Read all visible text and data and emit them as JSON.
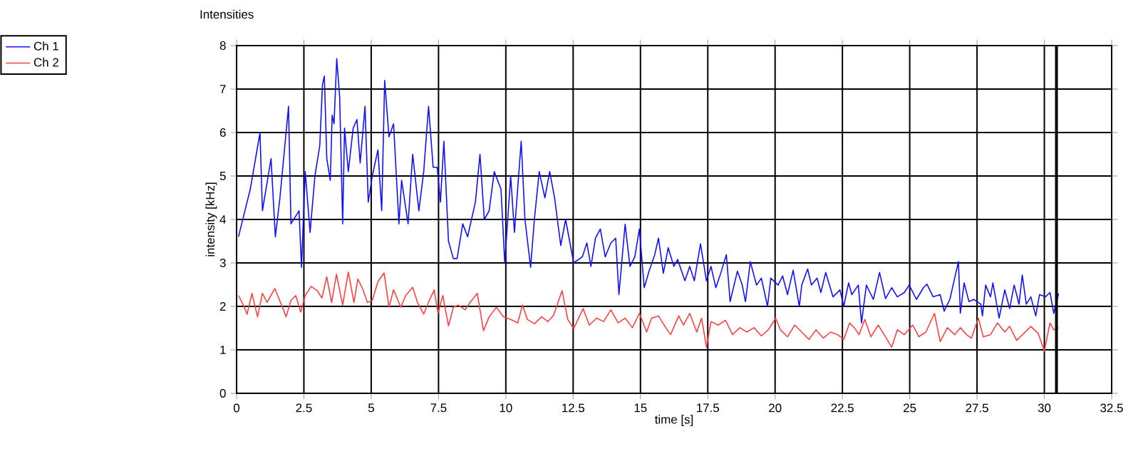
{
  "chart_data": {
    "type": "line",
    "title": "Intensities",
    "xlabel": "time [s]",
    "ylabel": "intensity [kHz]",
    "xlim": [
      0,
      32.5
    ],
    "ylim": [
      0,
      8
    ],
    "xticks": [
      0,
      2.5,
      5,
      7.5,
      10,
      12.5,
      15,
      17.5,
      20,
      22.5,
      25,
      27.5,
      30,
      32.5
    ],
    "yticks": [
      0,
      1,
      2,
      3,
      4,
      5,
      6,
      7,
      8
    ],
    "grid": true,
    "legend": "top left",
    "ref_lines": [
      {
        "axis": "x",
        "value": 30.45,
        "color": "#000000"
      }
    ],
    "series": [
      {
        "name": "Ch 1",
        "color": "#1010ff",
        "x": [
          0.07,
          0.51,
          0.87,
          0.96,
          1.28,
          1.44,
          1.61,
          1.93,
          2.02,
          2.32,
          2.41,
          2.55,
          2.73,
          2.91,
          3.09,
          3.19,
          3.26,
          3.35,
          3.48,
          3.55,
          3.62,
          3.72,
          3.83,
          3.94,
          4.01,
          4.15,
          4.33,
          4.47,
          4.59,
          4.77,
          4.89,
          5.04,
          5.25,
          5.39,
          5.5,
          5.66,
          5.83,
          6.03,
          6.13,
          6.37,
          6.54,
          6.77,
          6.95,
          7.13,
          7.3,
          7.45,
          7.57,
          7.7,
          7.87,
          8.05,
          8.19,
          8.4,
          8.58,
          8.87,
          9.04,
          9.2,
          9.38,
          9.57,
          9.82,
          9.96,
          10.18,
          10.32,
          10.57,
          10.71,
          10.92,
          11.06,
          11.24,
          11.45,
          11.63,
          11.81,
          12.04,
          12.22,
          12.52,
          12.84,
          13.01,
          13.16,
          13.33,
          13.51,
          13.69,
          13.9,
          14.08,
          14.2,
          14.43,
          14.61,
          14.79,
          14.96,
          15.14,
          15.32,
          15.53,
          15.67,
          15.85,
          16.03,
          16.24,
          16.38,
          16.65,
          16.83,
          17.0,
          17.23,
          17.45,
          17.62,
          17.8,
          17.98,
          18.19,
          18.33,
          18.6,
          18.78,
          18.9,
          19.08,
          19.31,
          19.49,
          19.72,
          19.84,
          20.11,
          20.28,
          20.46,
          20.67,
          20.9,
          20.99,
          21.21,
          21.35,
          21.56,
          21.7,
          21.88,
          22.15,
          22.41,
          22.55,
          22.73,
          22.85,
          23.09,
          23.21,
          23.39,
          23.65,
          23.88,
          24.1,
          24.33,
          24.54,
          24.8,
          24.98,
          25.25,
          25.51,
          25.64,
          25.87,
          26.13,
          26.28,
          26.49,
          26.67,
          26.81,
          26.88,
          27.02,
          27.2,
          27.38,
          27.64,
          27.7,
          27.82,
          28.0,
          28.09,
          28.32,
          28.53,
          28.71,
          28.88,
          29.06,
          29.18,
          29.33,
          29.5,
          29.68,
          29.82,
          30.04,
          30.21,
          30.35,
          30.53
        ],
        "values": [
          3.6,
          4.7,
          6.0,
          4.2,
          5.4,
          3.6,
          4.5,
          6.6,
          3.9,
          4.2,
          2.9,
          5.1,
          3.7,
          5.0,
          5.7,
          7.1,
          7.3,
          5.4,
          4.9,
          6.4,
          6.2,
          7.7,
          6.8,
          3.9,
          6.1,
          5.1,
          6.1,
          6.3,
          5.3,
          6.6,
          4.4,
          5.0,
          5.6,
          4.2,
          7.2,
          5.9,
          6.2,
          3.9,
          4.9,
          3.9,
          5.5,
          4.2,
          5.1,
          6.6,
          5.2,
          5.2,
          4.4,
          5.8,
          3.5,
          3.1,
          3.1,
          3.9,
          3.6,
          4.4,
          5.5,
          4.0,
          4.2,
          5.1,
          4.7,
          3.0,
          5.0,
          3.7,
          5.8,
          4.0,
          2.9,
          4.0,
          5.1,
          4.5,
          5.1,
          4.5,
          3.4,
          4.0,
          3.0,
          3.14,
          3.46,
          2.92,
          3.57,
          3.78,
          3.14,
          3.46,
          3.57,
          2.27,
          3.89,
          2.92,
          3.14,
          3.78,
          2.43,
          2.81,
          3.19,
          3.57,
          2.76,
          3.35,
          2.92,
          3.08,
          2.59,
          2.92,
          2.59,
          3.44,
          2.59,
          2.92,
          2.43,
          2.76,
          3.19,
          2.11,
          2.81,
          2.49,
          2.11,
          3.03,
          2.49,
          2.65,
          2.0,
          2.65,
          2.49,
          2.7,
          2.27,
          2.83,
          2.0,
          2.49,
          2.86,
          2.49,
          2.65,
          2.32,
          2.78,
          2.22,
          2.38,
          2.0,
          2.54,
          2.27,
          2.49,
          1.62,
          2.49,
          2.16,
          2.78,
          2.18,
          2.43,
          2.22,
          2.32,
          2.49,
          2.16,
          2.43,
          2.51,
          2.22,
          2.27,
          1.89,
          2.16,
          2.65,
          3.03,
          1.84,
          2.54,
          2.11,
          2.16,
          2.05,
          1.78,
          2.49,
          2.22,
          2.54,
          1.73,
          2.38,
          1.95,
          2.49,
          2.05,
          2.72,
          2.05,
          2.22,
          1.78,
          2.27,
          2.22,
          2.32,
          1.84,
          2.3
        ]
      },
      {
        "name": "Ch 2",
        "color": "#ff4040",
        "x": [
          0.07,
          0.25,
          0.39,
          0.57,
          0.78,
          0.96,
          1.13,
          1.42,
          1.67,
          1.84,
          2.02,
          2.2,
          2.38,
          2.55,
          2.77,
          3.0,
          3.17,
          3.35,
          3.53,
          3.71,
          3.94,
          4.15,
          4.36,
          4.5,
          4.68,
          4.86,
          5.04,
          5.25,
          5.48,
          5.66,
          5.83,
          6.1,
          6.28,
          6.54,
          6.72,
          6.95,
          7.16,
          7.34,
          7.48,
          7.66,
          7.87,
          8.05,
          8.23,
          8.49,
          8.67,
          8.94,
          9.17,
          9.38,
          9.65,
          9.91,
          10.18,
          10.44,
          10.62,
          10.8,
          11.06,
          11.33,
          11.56,
          11.77,
          12.09,
          12.3,
          12.52,
          12.87,
          13.1,
          13.37,
          13.63,
          13.9,
          14.17,
          14.43,
          14.7,
          14.96,
          15.23,
          15.41,
          15.67,
          15.94,
          16.12,
          16.42,
          16.6,
          16.83,
          17.09,
          17.27,
          17.45,
          17.62,
          17.89,
          18.16,
          18.42,
          18.69,
          18.95,
          19.22,
          19.49,
          19.75,
          20.02,
          20.2,
          20.46,
          20.73,
          20.99,
          21.26,
          21.52,
          21.79,
          22.06,
          22.32,
          22.55,
          22.77,
          22.94,
          23.12,
          23.33,
          23.56,
          23.83,
          24.1,
          24.33,
          24.54,
          24.8,
          25.11,
          25.34,
          25.6,
          25.92,
          26.13,
          26.4,
          26.67,
          26.88,
          27.11,
          27.29,
          27.55,
          27.73,
          28.0,
          28.26,
          28.53,
          28.71,
          28.97,
          29.24,
          29.5,
          29.77,
          30.0,
          30.21,
          30.35,
          30.53
        ],
        "values": [
          2.25,
          2.03,
          1.82,
          2.3,
          1.76,
          2.3,
          2.09,
          2.41,
          2.03,
          1.76,
          2.14,
          2.25,
          1.87,
          2.25,
          2.46,
          2.36,
          2.19,
          2.68,
          2.09,
          2.74,
          2.03,
          2.79,
          2.09,
          2.63,
          2.41,
          2.09,
          2.14,
          2.57,
          2.77,
          1.98,
          2.38,
          1.98,
          2.25,
          2.44,
          2.09,
          1.82,
          2.14,
          2.38,
          1.84,
          2.25,
          1.55,
          1.98,
          2.03,
          1.92,
          2.09,
          2.3,
          1.44,
          1.76,
          1.98,
          1.76,
          1.7,
          1.62,
          2.03,
          1.7,
          1.6,
          1.76,
          1.65,
          1.79,
          2.36,
          1.7,
          1.49,
          1.95,
          1.57,
          1.73,
          1.65,
          1.92,
          1.62,
          1.73,
          1.51,
          1.84,
          1.41,
          1.73,
          1.78,
          1.51,
          1.35,
          1.78,
          1.57,
          1.84,
          1.41,
          1.73,
          1.06,
          1.65,
          1.57,
          1.68,
          1.35,
          1.51,
          1.41,
          1.51,
          1.32,
          1.46,
          1.73,
          1.46,
          1.3,
          1.57,
          1.41,
          1.24,
          1.46,
          1.27,
          1.41,
          1.35,
          1.24,
          1.62,
          1.51,
          1.35,
          1.7,
          1.3,
          1.57,
          1.3,
          1.06,
          1.46,
          1.35,
          1.57,
          1.3,
          1.41,
          1.84,
          1.19,
          1.51,
          1.35,
          1.51,
          1.35,
          1.27,
          1.73,
          1.3,
          1.35,
          1.62,
          1.41,
          1.54,
          1.22,
          1.38,
          1.54,
          1.38,
          0.97,
          1.62,
          1.46,
          1.51
        ]
      }
    ]
  }
}
